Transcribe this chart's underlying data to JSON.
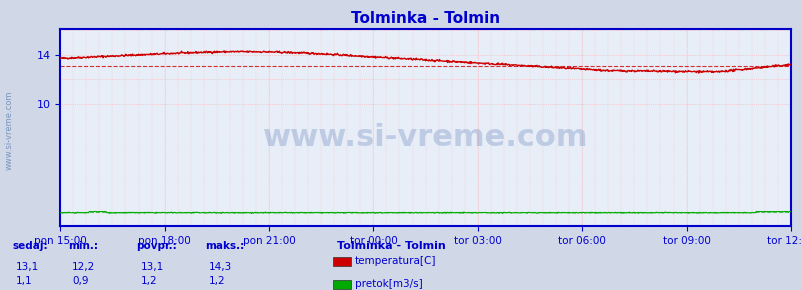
{
  "title": "Tolminka - Tolmin",
  "background_color": "#d0d8e8",
  "plot_bg_color": "#e8eef8",
  "x_tick_labels": [
    "pon 15:00",
    "pon 18:00",
    "pon 21:00",
    "tor 00:00",
    "tor 03:00",
    "tor 06:00",
    "tor 09:00",
    "tor 12:00"
  ],
  "x_tick_positions": [
    0,
    180,
    360,
    540,
    720,
    900,
    1080,
    1260
  ],
  "n_points": 1261,
  "ylim": [
    0,
    16.1
  ],
  "temp_color": "#cc0000",
  "flow_color": "#00aa00",
  "temp_avg": 13.1,
  "flow_avg": 1.2,
  "temp_min": 12.2,
  "temp_max": 14.3,
  "temp_sedaj": 13.1,
  "flow_sedaj": 1.1,
  "flow_min": 0.9,
  "flow_max": 1.2,
  "legend_title": "Tolminka - Tolmin",
  "legend_entries": [
    "temperatura[C]",
    "pretok[m3/s]"
  ],
  "legend_colors": [
    "#cc0000",
    "#00aa00"
  ],
  "stats_labels": [
    "sedaj:",
    "min.:",
    "povpr.:",
    "maks.:"
  ],
  "stats_temp": [
    13.1,
    12.2,
    13.1,
    14.3
  ],
  "stats_flow": [
    1.1,
    0.9,
    1.2,
    1.2
  ],
  "watermark": "www.si-vreme.com",
  "sidebar_text": "www.si-vreme.com",
  "border_color": "#0000cc",
  "title_color": "#0000cc",
  "axis_label_color": "#0000cc",
  "stats_color": "#0000cc"
}
